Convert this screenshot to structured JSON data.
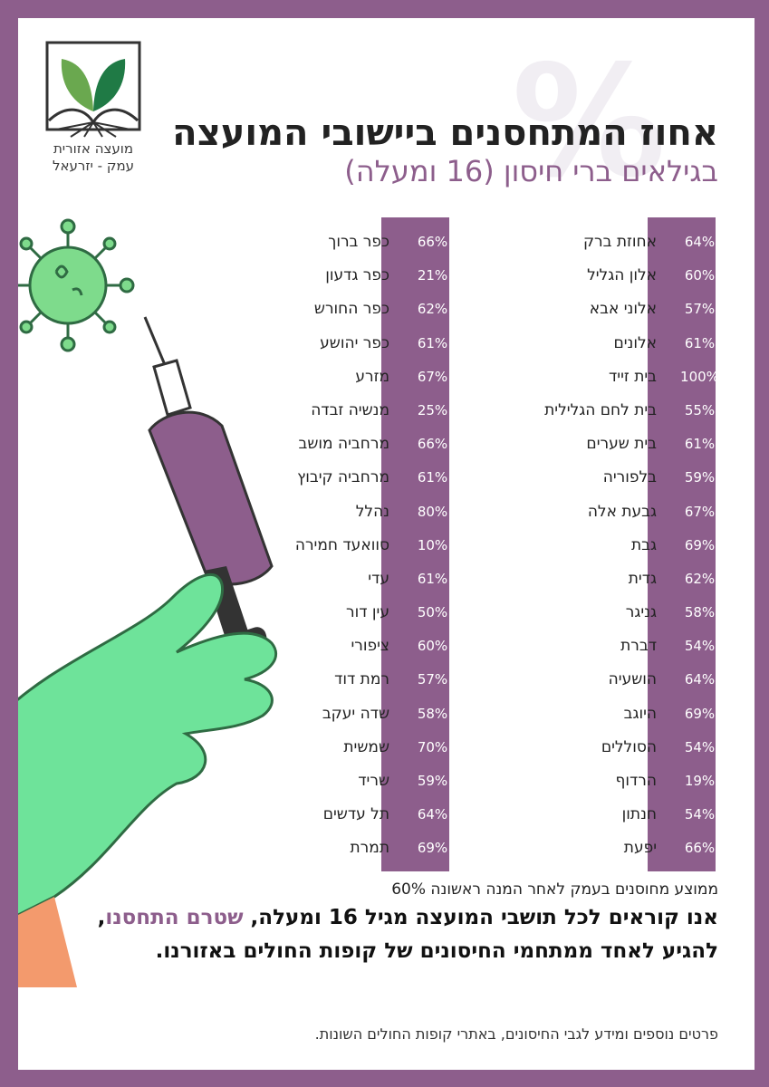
{
  "logo": {
    "line1": "מועצה אזורית",
    "line2": "עמק - יזרעאל"
  },
  "header": {
    "title": "אחוז המתחסנים ביישובי המועצה",
    "subtitle": "בגילאים ברי חיסון (16 ומעלה)"
  },
  "colors": {
    "brand_purple": "#8d5e8c",
    "glove_green": "#6ee39a",
    "virus_green": "#7edb8c"
  },
  "right_column": [
    {
      "name": "אחוזת ברק",
      "pct": "64%"
    },
    {
      "name": "אלון הגליל",
      "pct": "60%"
    },
    {
      "name": "אלוני אבא",
      "pct": "57%"
    },
    {
      "name": "אלונים",
      "pct": "61%"
    },
    {
      "name": "בית זייד",
      "pct": "100%"
    },
    {
      "name": "בית לחם הגלילית",
      "pct": "55%"
    },
    {
      "name": "בית שערים",
      "pct": "61%"
    },
    {
      "name": "בלפוריה",
      "pct": "59%"
    },
    {
      "name": "גבעת אלה",
      "pct": "67%"
    },
    {
      "name": "גבת",
      "pct": "69%"
    },
    {
      "name": "גדית",
      "pct": "62%"
    },
    {
      "name": "גניגר",
      "pct": "58%"
    },
    {
      "name": "דברת",
      "pct": "54%"
    },
    {
      "name": "הושעיה",
      "pct": "64%"
    },
    {
      "name": "היוגב",
      "pct": "69%"
    },
    {
      "name": "הסוללים",
      "pct": "54%"
    },
    {
      "name": "הרדוף",
      "pct": "19%"
    },
    {
      "name": "חנתון",
      "pct": "54%"
    },
    {
      "name": "יפעת",
      "pct": "66%"
    }
  ],
  "left_column": [
    {
      "name": "כפר ברוך",
      "pct": "66%"
    },
    {
      "name": "כפר גדעון",
      "pct": "21%"
    },
    {
      "name": "כפר החורש",
      "pct": "62%"
    },
    {
      "name": "כפר יהושע",
      "pct": "61%"
    },
    {
      "name": "מזרע",
      "pct": "67%"
    },
    {
      "name": "מנשיה זבדה",
      "pct": "25%"
    },
    {
      "name": "מרחביה מושב",
      "pct": "66%"
    },
    {
      "name": "מרחביה קיבוץ",
      "pct": "61%"
    },
    {
      "name": "נהלל",
      "pct": "80%"
    },
    {
      "name": "סוואעד חמירה",
      "pct": "10%"
    },
    {
      "name": "עדי",
      "pct": "61%"
    },
    {
      "name": "עין דור",
      "pct": "50%"
    },
    {
      "name": "ציפורי",
      "pct": "60%"
    },
    {
      "name": "רמת דוד",
      "pct": "57%"
    },
    {
      "name": "שדה יעקב",
      "pct": "58%"
    },
    {
      "name": "שמשית",
      "pct": "70%"
    },
    {
      "name": "שריד",
      "pct": "59%"
    },
    {
      "name": "תל עדשים",
      "pct": "64%"
    },
    {
      "name": "תמרת",
      "pct": "69%"
    }
  ],
  "average": "ממוצע מחוסנים בעמק לאחר המנה ראשונה 60%",
  "callout": {
    "part1": "אנו קוראים לכל תושבי המועצה מגיל 16 ומעלה, ",
    "highlight": "שטרם התחסנו",
    "part2": ", להגיע לאחד ממתחמי החיסונים של קופות החולים באזורנו."
  },
  "footnote": "פרטים נוספים ומידע לגבי החיסונים, באתרי קופות החולים השונות.",
  "background_symbol": "%"
}
